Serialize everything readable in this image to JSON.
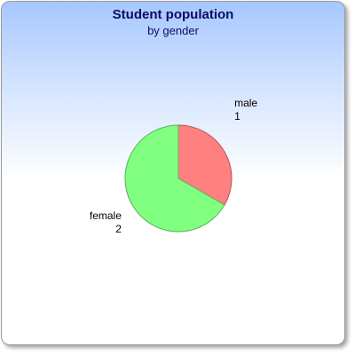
{
  "chart_data": {
    "type": "pie",
    "title": "Student population",
    "subtitle": "by gender",
    "slices": [
      {
        "label": "male",
        "value": 1,
        "color": "#ff8080"
      },
      {
        "label": "female",
        "value": 2,
        "color": "#80ff80"
      }
    ]
  }
}
